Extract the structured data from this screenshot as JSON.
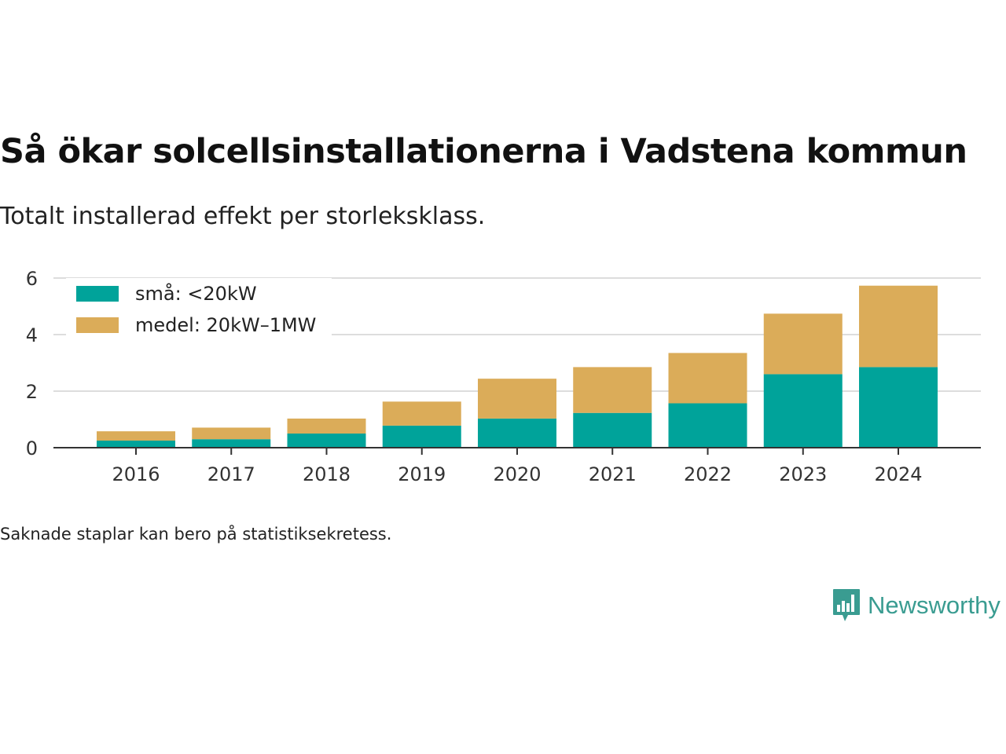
{
  "title": "Så ökar solcellsinstallationerna i Vadstena kommun",
  "subtitle": "Totalt installerad effekt per storleksklass.",
  "note": "Saknade staplar kan bero på statistiksekretess.",
  "brand": {
    "name": "Newsworthy",
    "logo_icon": "bar-chart-speech-bubble-icon",
    "color": "#3a9c91"
  },
  "chart_data": {
    "type": "bar",
    "stacked": true,
    "categories": [
      "2016",
      "2017",
      "2018",
      "2019",
      "2020",
      "2021",
      "2022",
      "2023",
      "2024"
    ],
    "series": [
      {
        "name": "små: <20kW",
        "color": "#00a39a",
        "values": [
          0.25,
          0.3,
          0.5,
          0.78,
          1.03,
          1.23,
          1.57,
          2.6,
          2.85
        ]
      },
      {
        "name": "medel: 20kW–1MW",
        "color": "#dbac59",
        "values": [
          0.33,
          0.41,
          0.53,
          0.85,
          1.41,
          1.62,
          1.78,
          2.14,
          2.88
        ]
      }
    ],
    "ylim": [
      0,
      6
    ],
    "yticks": [
      "0",
      "2",
      "4",
      "6"
    ],
    "grid": true,
    "legend": "top-left"
  }
}
